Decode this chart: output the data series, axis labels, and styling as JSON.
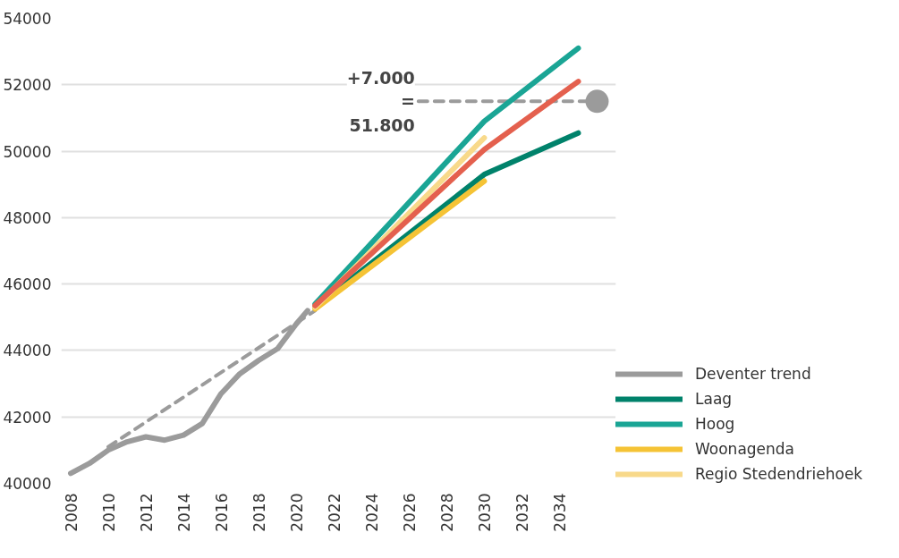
{
  "chart_data": {
    "type": "line",
    "xlim": [
      2007.5,
      2037
    ],
    "xticks": [
      2008,
      2010,
      2012,
      2014,
      2016,
      2018,
      2020,
      2022,
      2024,
      2026,
      2028,
      2030,
      2032,
      2034
    ],
    "ylim": [
      40000,
      54000
    ],
    "yticks": [
      40000,
      42000,
      44000,
      46000,
      48000,
      50000,
      52000,
      54000
    ],
    "grid": "y",
    "legend": "right",
    "line_style": "solid",
    "marker": "none",
    "series": [
      {
        "name": "Deventer trend",
        "color": "#9b9b9b",
        "x": [
          2008,
          2009,
          2010,
          2011,
          2012,
          2013,
          2014,
          2015,
          2016,
          2017,
          2018,
          2019,
          2020,
          2020.6
        ],
        "values": [
          40300,
          40600,
          41000,
          41250,
          41400,
          41300,
          41450,
          41800,
          42700,
          43300,
          43700,
          44050,
          44800,
          45200
        ]
      },
      {
        "color": "#9b9b9b",
        "line_style": "dashed",
        "x": [
          2010,
          2021
        ],
        "values": [
          41100,
          45200
        ]
      },
      {
        "color": "#9b9b9b",
        "line_style": "dashed",
        "x": [
          2026.5,
          2035.5
        ],
        "values": [
          51500,
          51500
        ]
      },
      {
        "type": "scatter",
        "color": "#9b9b9b",
        "marker": "circle",
        "x": [
          2036
        ],
        "values": [
          51500
        ]
      },
      {
        "name": "Laag",
        "color": "#00826b",
        "x": [
          2021,
          2030,
          2035
        ],
        "values": [
          45300,
          49300,
          50550
        ]
      },
      {
        "name": "Hoog",
        "color": "#1aa595",
        "x": [
          2021,
          2030,
          2035
        ],
        "values": [
          45400,
          50900,
          53100
        ]
      },
      {
        "name": "Woonagenda",
        "color": "#f5c335",
        "x": [
          2021,
          2030
        ],
        "values": [
          45250,
          49100
        ]
      },
      {
        "name": "Regio Stedendriehoek",
        "color": "#f8d98a",
        "x": [
          2021,
          2030
        ],
        "values": [
          45300,
          50400
        ]
      },
      {
        "color": "#e4604e",
        "x": [
          2021,
          2030,
          2035
        ],
        "values": [
          45350,
          50050,
          52100
        ]
      }
    ],
    "annotations": [
      {
        "text": "+7.000\n=\n51.800",
        "x": 2026.5,
        "y": 51500
      }
    ]
  }
}
